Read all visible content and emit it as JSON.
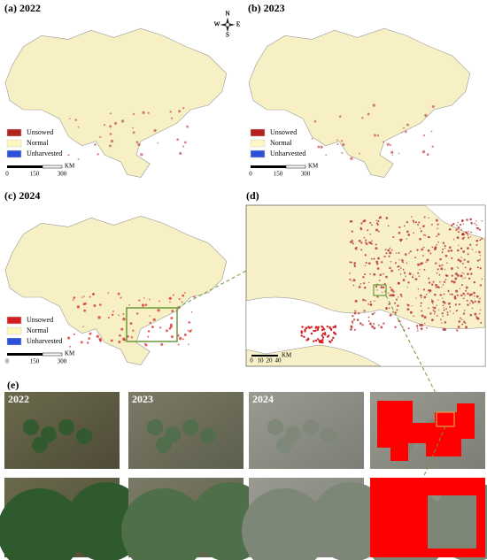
{
  "panels": [
    {
      "label": "(a) 2022",
      "legend": [
        {
          "name": "Unsowed",
          "color": "#b3221e"
        },
        {
          "name": "Normal",
          "color": "#fff7c2"
        },
        {
          "name": "Unharvested",
          "color": "#2b4fd6"
        }
      ],
      "scale": {
        "ticks": [
          0,
          150,
          300
        ],
        "unit": "KM"
      }
    },
    {
      "label": "(b) 2023",
      "legend": [
        {
          "name": "Unsowed",
          "color": "#b3221e"
        },
        {
          "name": "Normal",
          "color": "#fff7c2"
        },
        {
          "name": "Unharvested",
          "color": "#2b4fd6"
        }
      ],
      "scale": {
        "ticks": [
          0,
          150,
          300
        ],
        "unit": "KM"
      }
    },
    {
      "label": "(c) 2024",
      "legend": [
        {
          "name": "Unsowed",
          "color": "#d42020"
        },
        {
          "name": "Normal",
          "color": "#fff7c2"
        },
        {
          "name": "Unharvested",
          "color": "#2b4fd6"
        }
      ],
      "scale": {
        "ticks": [
          0,
          150,
          300
        ],
        "unit": "KM"
      }
    }
  ],
  "compass": {
    "n": "N",
    "s": "S",
    "e": "E",
    "w": "W"
  },
  "panel_d": {
    "label": "(d)",
    "scale": {
      "ticks": [
        0,
        10,
        20,
        40
      ],
      "unit": "KM"
    }
  },
  "panel_e": {
    "label": "(e)",
    "years": [
      "2022",
      "2023",
      "2024"
    ]
  }
}
